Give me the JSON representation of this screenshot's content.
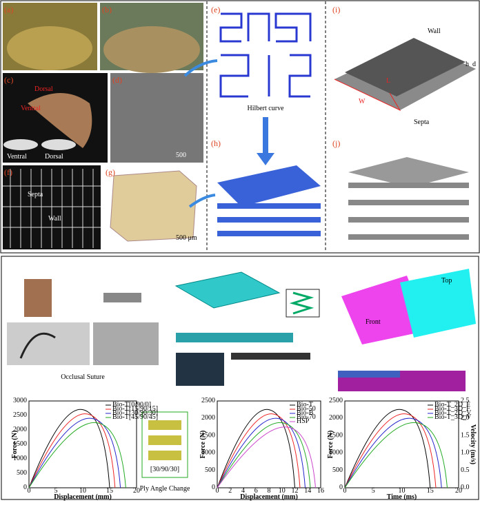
{
  "top": {
    "panels": [
      "(a)",
      "(b)",
      "(c)",
      "(d)",
      "(e)",
      "(f)",
      "(g)",
      "(h)",
      "(i)",
      "(j)"
    ],
    "c_labels": [
      "Dorsal",
      "Ventral",
      "Ventral",
      "Dorsal"
    ],
    "d_scale": "500",
    "e_caption": "Hilbert curve",
    "f_labels": [
      "Septa",
      "Wall"
    ],
    "g_scale": "500 μm",
    "i_labels": [
      "Wall",
      "Septa",
      "W",
      "L",
      "h",
      "d"
    ]
  },
  "bottom": {
    "suture": "Occlusal Suture",
    "ply": "Ply Angle Change",
    "ply_code": "[30/90/30]",
    "layers": [
      "Top",
      "Front"
    ],
    "charts": [
      {
        "ylabel": "Force (N)",
        "xlabel": "Displacement (mm)",
        "yticks": [
          "0",
          "500",
          "1000",
          "1500",
          "2000",
          "2500",
          "3000"
        ],
        "xticks": [
          "0",
          "5",
          "10",
          "15",
          "20"
        ],
        "legend": [
          "Bio-T[0/90/0]",
          "Bio-T[15/90/15]",
          "Bio-T[30/90/30]",
          "Bio-T[45/90/45]"
        ]
      },
      {
        "ylabel": "Force (N)",
        "xlabel": "Displacement (mm)",
        "yticks": [
          "0",
          "500",
          "1000",
          "1500",
          "2000",
          "2500"
        ],
        "xticks": [
          "0",
          "2",
          "4",
          "6",
          "8",
          "10",
          "12",
          "14",
          "16"
        ],
        "legend": [
          "Bio-T",
          "Bio-50",
          "Bio-B",
          "Bio-70",
          "HSP"
        ]
      },
      {
        "ylabel": "Force (N)",
        "y2label": "Velocity (m/s)",
        "xlabel": "Time (ms)",
        "yticks": [
          "0",
          "500",
          "1000",
          "1500",
          "2000",
          "2500"
        ],
        "y2ticks": [
          "0.0",
          "0.5",
          "1.0",
          "1.5",
          "2.0",
          "2.5"
        ],
        "xticks": [
          "0",
          "5",
          "10",
          "15",
          "20"
        ],
        "legend": [
          "Bio-T_2D_F",
          "Bio-T_3D_F",
          "Bio-T_2D_V",
          "Bio-T_3D_V"
        ]
      }
    ]
  }
}
